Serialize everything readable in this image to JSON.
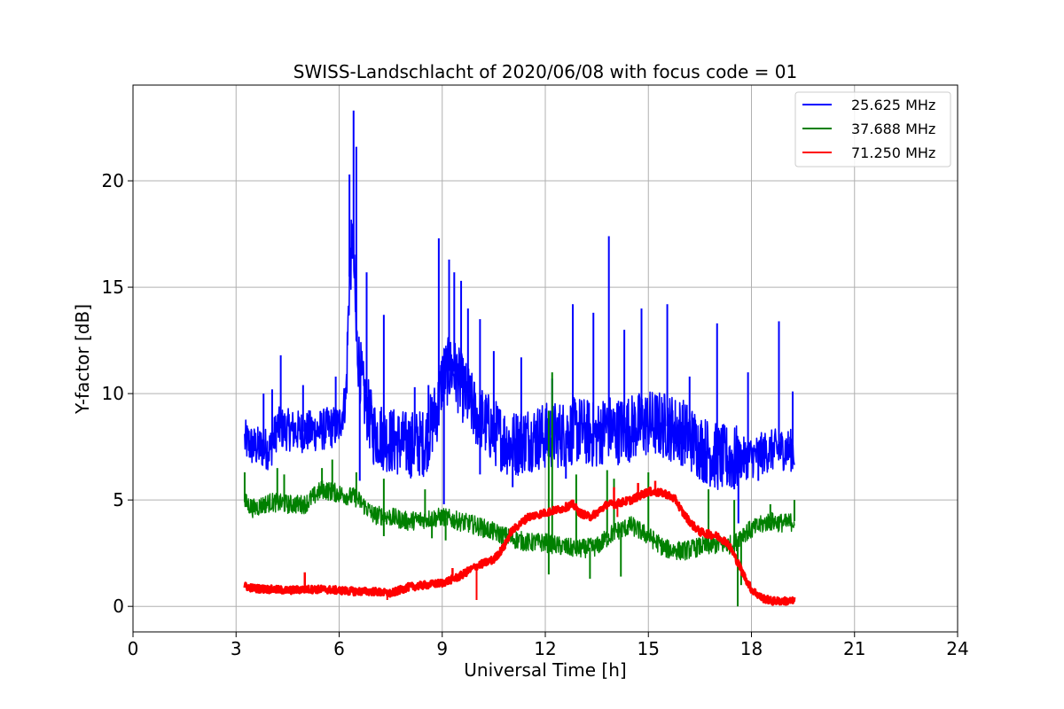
{
  "chart_data": {
    "type": "line",
    "title": "SWISS-Landschlacht of 2020/06/08 with focus code = 01",
    "xlabel": "Universal Time [h]",
    "ylabel": "Y-factor [dB]",
    "xlim": [
      0,
      24
    ],
    "ylim": [
      -1.2,
      24.5
    ],
    "x_ticks": [
      0,
      3,
      6,
      9,
      12,
      15,
      18,
      21,
      24
    ],
    "y_ticks": [
      0,
      5,
      10,
      15,
      20
    ],
    "grid": true,
    "legend_position": "top-right",
    "series": [
      {
        "name": "25.625 MHz",
        "color": "#0000ff",
        "x": [
          3.25,
          3.5,
          4.0,
          4.2,
          4.5,
          5.0,
          5.5,
          6.0,
          6.2,
          6.3,
          6.4,
          6.5,
          6.7,
          7.0,
          7.5,
          8.0,
          8.5,
          8.9,
          9.0,
          9.3,
          9.6,
          10.0,
          10.5,
          11.0,
          11.5,
          12.0,
          12.5,
          13.0,
          13.5,
          13.8,
          14.0,
          14.5,
          15.0,
          15.5,
          16.0,
          16.5,
          17.0,
          17.5,
          18.0,
          18.5,
          19.0,
          19.25
        ],
        "y": [
          7.8,
          7.5,
          7.4,
          8.4,
          8.3,
          8.2,
          8.3,
          8.5,
          9.8,
          15.5,
          17.5,
          12.5,
          10.0,
          8.2,
          7.8,
          7.6,
          7.7,
          9.5,
          10.8,
          11.2,
          10.2,
          9.0,
          8.2,
          7.6,
          7.9,
          8.0,
          8.1,
          8.3,
          8.0,
          8.5,
          8.2,
          8.4,
          8.6,
          8.5,
          8.2,
          7.5,
          7.0,
          6.9,
          7.0,
          7.3,
          7.4,
          7.3
        ],
        "spikes": [
          [
            3.8,
            10.0
          ],
          [
            4.05,
            10.2
          ],
          [
            4.3,
            11.8
          ],
          [
            4.95,
            10.4
          ],
          [
            5.9,
            10.8
          ],
          [
            6.3,
            20.3
          ],
          [
            6.42,
            23.3
          ],
          [
            6.5,
            21.6
          ],
          [
            6.8,
            15.7
          ],
          [
            7.3,
            13.7
          ],
          [
            8.2,
            10.3
          ],
          [
            8.6,
            10.4
          ],
          [
            8.9,
            17.3
          ],
          [
            9.2,
            16.3
          ],
          [
            9.35,
            15.7
          ],
          [
            9.55,
            15.3
          ],
          [
            9.75,
            14.0
          ],
          [
            10.1,
            13.5
          ],
          [
            10.5,
            12.0
          ],
          [
            11.3,
            11.7
          ],
          [
            12.2,
            10.7
          ],
          [
            12.8,
            14.2
          ],
          [
            13.4,
            13.8
          ],
          [
            13.85,
            17.4
          ],
          [
            14.3,
            13.0
          ],
          [
            14.8,
            14.0
          ],
          [
            15.55,
            14.2
          ],
          [
            16.2,
            10.8
          ],
          [
            17.0,
            13.3
          ],
          [
            17.9,
            11.0
          ],
          [
            18.8,
            13.4
          ],
          [
            19.2,
            10.1
          ]
        ],
        "dips": [
          [
            6.6,
            5.9
          ],
          [
            8.1,
            6.1
          ],
          [
            9.05,
            4.8
          ],
          [
            10.1,
            6.2
          ],
          [
            11.05,
            5.6
          ],
          [
            12.6,
            6.0
          ],
          [
            16.7,
            6.1
          ],
          [
            17.5,
            5.5
          ],
          [
            17.62,
            3.9
          ],
          [
            18.2,
            5.9
          ]
        ]
      },
      {
        "name": "37.688 MHz",
        "color": "#008000",
        "x": [
          3.25,
          3.5,
          4.0,
          4.5,
          5.0,
          5.5,
          6.0,
          6.5,
          7.0,
          7.5,
          8.0,
          8.5,
          9.0,
          9.5,
          10.0,
          10.5,
          11.0,
          11.5,
          12.0,
          12.5,
          13.0,
          13.5,
          14.0,
          14.5,
          15.0,
          15.5,
          16.0,
          16.5,
          17.0,
          17.5,
          17.7,
          18.0,
          18.5,
          19.0,
          19.25
        ],
        "y": [
          4.9,
          4.6,
          4.9,
          4.8,
          4.8,
          5.5,
          5.3,
          5.1,
          4.3,
          4.2,
          4.0,
          4.1,
          4.2,
          4.0,
          3.8,
          3.5,
          3.2,
          3.0,
          3.0,
          2.8,
          2.7,
          2.8,
          3.5,
          3.8,
          3.3,
          2.7,
          2.6,
          2.8,
          2.9,
          2.9,
          3.4,
          3.6,
          4.0,
          3.9,
          4.0
        ],
        "spikes": [
          [
            3.25,
            6.3
          ],
          [
            4.2,
            6.5
          ],
          [
            4.4,
            6.2
          ],
          [
            5.5,
            6.5
          ],
          [
            5.8,
            6.9
          ],
          [
            6.5,
            6.3
          ],
          [
            7.3,
            6.0
          ],
          [
            8.5,
            5.5
          ],
          [
            12.2,
            11.0
          ],
          [
            12.1,
            9.2
          ],
          [
            12.9,
            6.2
          ],
          [
            13.8,
            6.4
          ],
          [
            14.0,
            6.0
          ],
          [
            15.0,
            6.3
          ],
          [
            16.75,
            5.5
          ],
          [
            17.5,
            5.0
          ],
          [
            18.55,
            4.8
          ],
          [
            19.25,
            5.0
          ]
        ],
        "dips": [
          [
            7.3,
            3.3
          ],
          [
            8.7,
            3.2
          ],
          [
            9.1,
            3.1
          ],
          [
            12.1,
            1.5
          ],
          [
            13.3,
            1.3
          ],
          [
            14.2,
            1.4
          ],
          [
            17.6,
            0.0
          ],
          [
            17.7,
            1.0
          ]
        ]
      },
      {
        "name": "71.250 MHz",
        "color": "#ff0000",
        "x": [
          3.25,
          3.5,
          4.0,
          4.5,
          5.0,
          5.5,
          6.0,
          6.5,
          7.0,
          7.5,
          8.0,
          8.5,
          9.0,
          9.5,
          10.0,
          10.5,
          10.8,
          11.0,
          11.5,
          12.0,
          12.5,
          12.8,
          13.0,
          13.3,
          13.5,
          13.8,
          14.0,
          14.5,
          15.0,
          15.5,
          15.8,
          16.0,
          16.3,
          16.5,
          17.0,
          17.3,
          17.5,
          17.8,
          18.0,
          18.3,
          18.6,
          19.0,
          19.25
        ],
        "y": [
          0.95,
          0.85,
          0.8,
          0.75,
          0.8,
          0.8,
          0.75,
          0.7,
          0.7,
          0.6,
          0.9,
          1.0,
          1.1,
          1.4,
          1.9,
          2.2,
          2.8,
          3.5,
          4.2,
          4.4,
          4.6,
          4.8,
          4.4,
          4.2,
          4.4,
          4.8,
          4.8,
          5.0,
          5.4,
          5.3,
          5.0,
          4.4,
          3.8,
          3.5,
          3.3,
          3.0,
          2.4,
          1.4,
          0.8,
          0.4,
          0.25,
          0.25,
          0.25
        ],
        "spikes": [
          [
            5.0,
            1.6
          ],
          [
            9.3,
            1.8
          ],
          [
            10.5,
            2.2
          ],
          [
            14.0,
            5.6
          ],
          [
            14.7,
            5.8
          ],
          [
            15.2,
            5.9
          ]
        ],
        "dips": [
          [
            7.4,
            0.3
          ],
          [
            10.0,
            0.3
          ],
          [
            14.1,
            4.2
          ]
        ]
      }
    ]
  }
}
